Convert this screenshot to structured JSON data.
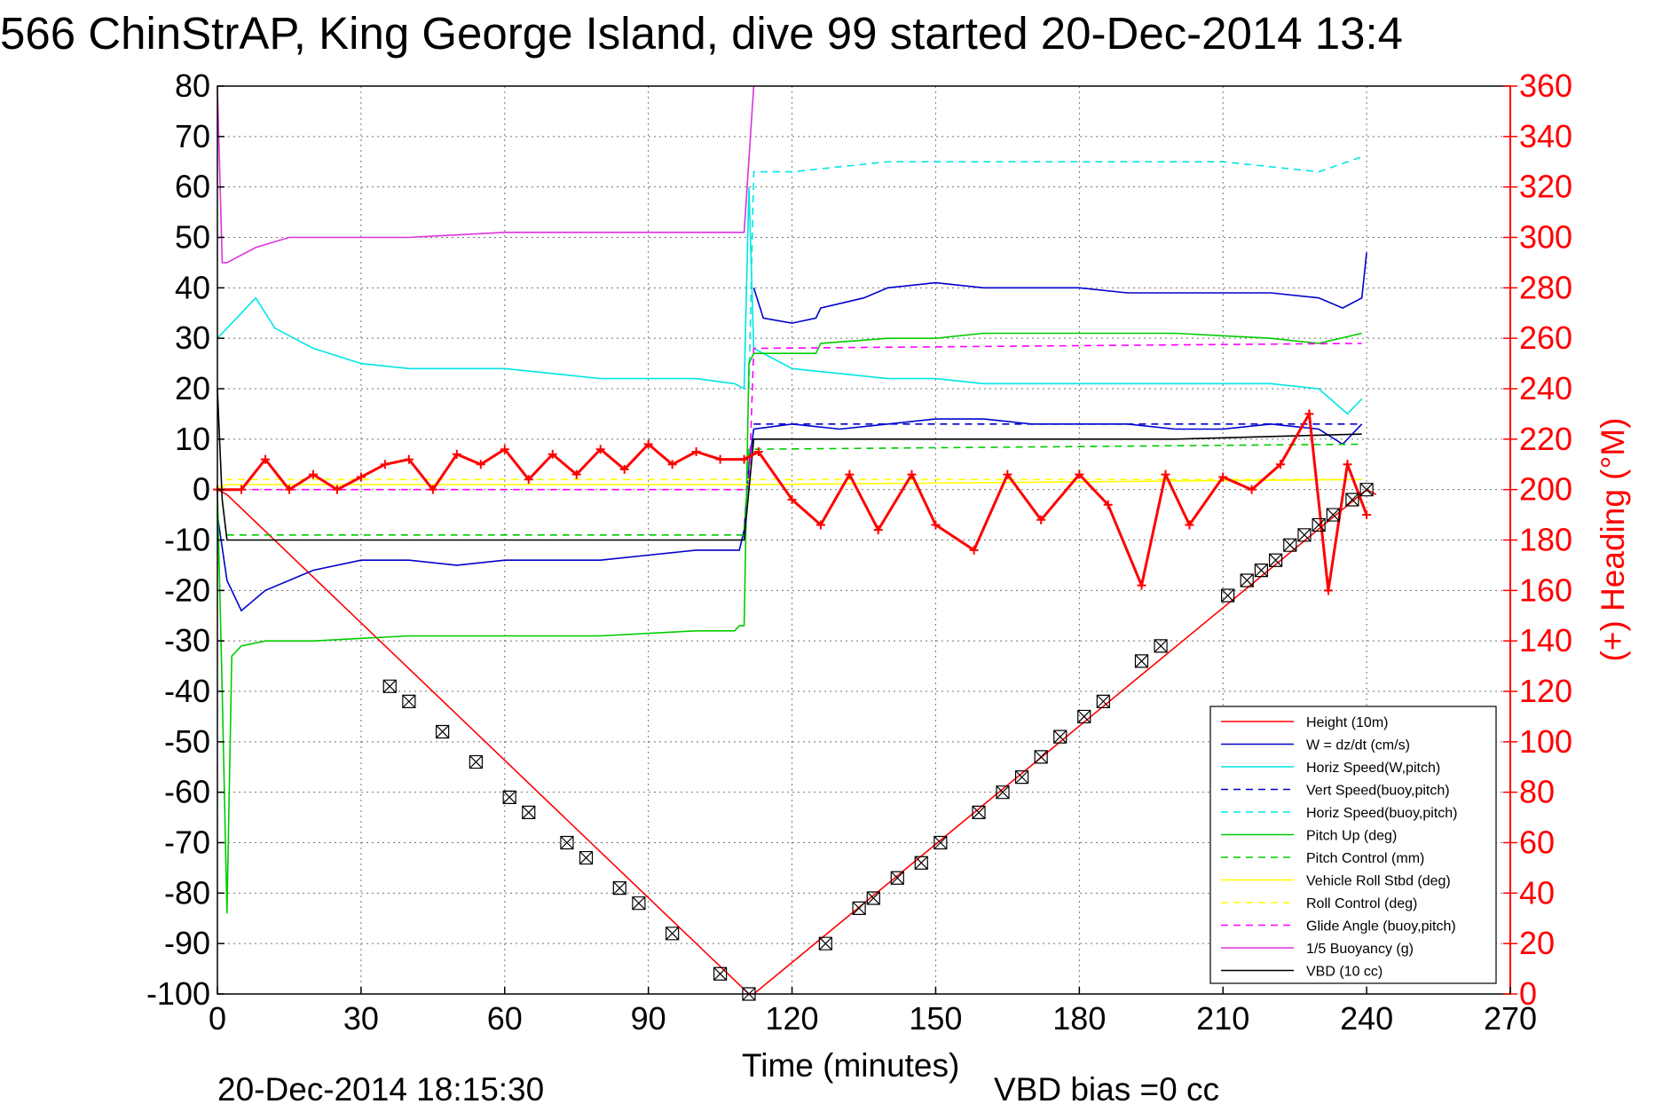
{
  "chart_data": {
    "type": "line",
    "title": "566 ChinStrAP, King George Island, dive 99 started 20-Dec-2014 13:4",
    "xlabel": "Time (minutes)",
    "ylabel_right": "(+) Heading (°M)",
    "xlim": [
      0,
      270
    ],
    "ylim": [
      -100,
      80
    ],
    "ylim_right": [
      0,
      360
    ],
    "x_ticks": [
      "0",
      "30",
      "60",
      "90",
      "120",
      "150",
      "180",
      "210",
      "240",
      "270"
    ],
    "y_ticks": [
      "80",
      "70",
      "60",
      "50",
      "40",
      "30",
      "20",
      "10",
      "0",
      "-10",
      "-20",
      "-30",
      "-40",
      "-50",
      "-60",
      "-70",
      "-80",
      "-90",
      "-100"
    ],
    "y_ticks_right": [
      "360",
      "340",
      "320",
      "300",
      "280",
      "260",
      "240",
      "220",
      "200",
      "180",
      "160",
      "140",
      "120",
      "100",
      "80",
      "60",
      "40",
      "20",
      "0"
    ],
    "grid": true,
    "legend_position": "bottom-right",
    "footer_left": "20-Dec-2014 18:15:30",
    "footer_right": "VBD bias =0 cc",
    "colors": {
      "height": "#ff0000",
      "w": "#0000cc",
      "horiz_speed": "#00e5e5",
      "pitch": "#00cc00",
      "roll": "#ffff00",
      "glide_angle": "#ff00ff",
      "buoyancy": "#dd33dd",
      "vbd": "#000000",
      "heading": "#ff0000"
    },
    "series": [
      {
        "key": "height",
        "name": "Height (10m)",
        "color": "#ff0000",
        "dash": "",
        "x": [
          0,
          2,
          111,
          112,
          240,
          242
        ],
        "y": [
          0,
          -1,
          -100,
          -100,
          0,
          -1
        ]
      },
      {
        "key": "w",
        "name": "W = dz/dt (cm/s)",
        "color": "#0000cc",
        "dash": "",
        "x": [
          0,
          2,
          5,
          10,
          20,
          30,
          40,
          50,
          60,
          70,
          80,
          90,
          100,
          109,
          110,
          111,
          112,
          120,
          130,
          140,
          150,
          160,
          170,
          180,
          190,
          200,
          210,
          220,
          230,
          235,
          239
        ],
        "y": [
          -5,
          -18,
          -24,
          -20,
          -16,
          -14,
          -14,
          -15,
          -14,
          -14,
          -14,
          -13,
          -12,
          -12,
          -8,
          5,
          12,
          13,
          12,
          13,
          14,
          14,
          13,
          13,
          13,
          12,
          12,
          13,
          12,
          9,
          13
        ]
      },
      {
        "key": "w_top",
        "name": "",
        "color": "#0000cc",
        "dash": "",
        "x": [
          112,
          114,
          120,
          125,
          126,
          135,
          140,
          150,
          160,
          170,
          180,
          190,
          200,
          210,
          220,
          230,
          235,
          239,
          240
        ],
        "y": [
          40,
          34,
          33,
          34,
          36,
          38,
          40,
          41,
          40,
          40,
          40,
          39,
          39,
          39,
          39,
          38,
          36,
          38,
          47
        ]
      },
      {
        "key": "horiz_speed",
        "name": "Horiz Speed(W,pitch)",
        "color": "#00e5e5",
        "dash": "",
        "x": [
          0,
          2,
          5,
          8,
          12,
          20,
          30,
          40,
          50,
          60,
          70,
          80,
          90,
          100,
          108,
          110,
          111,
          112,
          120,
          130,
          140,
          150,
          160,
          170,
          180,
          190,
          200,
          210,
          220,
          230,
          236,
          239
        ],
        "y": [
          30,
          32,
          35,
          38,
          32,
          28,
          25,
          24,
          24,
          24,
          23,
          22,
          22,
          22,
          21,
          20,
          60,
          28,
          24,
          23,
          22,
          22,
          21,
          21,
          21,
          21,
          21,
          21,
          21,
          20,
          15,
          18
        ]
      },
      {
        "key": "vert_speed_buoy",
        "name": "Vert Speed(buoy,pitch)",
        "color": "#0000cc",
        "dash": "8 6",
        "x": [
          112,
          239
        ],
        "y": [
          13,
          13
        ]
      },
      {
        "key": "horiz_speed_buoy",
        "name": "Horiz Speed(buoy,pitch)",
        "color": "#00e5e5",
        "dash": "8 6",
        "x": [
          111,
          112,
          120,
          130,
          140,
          150,
          160,
          170,
          180,
          190,
          200,
          210,
          220,
          230,
          239
        ],
        "y": [
          20,
          63,
          63,
          64,
          65,
          65,
          65,
          65,
          65,
          65,
          65,
          65,
          64,
          63,
          66
        ]
      },
      {
        "key": "pitch_up",
        "name": "Pitch Up (deg)",
        "color": "#00cc00",
        "dash": "",
        "x": [
          0,
          1,
          2,
          3,
          5,
          10,
          20,
          40,
          60,
          80,
          100,
          108,
          109,
          110,
          111,
          112,
          120,
          125,
          126,
          140,
          150,
          160,
          180,
          200,
          220,
          230,
          239
        ],
        "y": [
          0,
          -40,
          -84,
          -33,
          -31,
          -30,
          -30,
          -29,
          -29,
          -29,
          -28,
          -28,
          -27,
          -27,
          25,
          27,
          27,
          27,
          29,
          30,
          30,
          31,
          31,
          31,
          30,
          29,
          31
        ]
      },
      {
        "key": "pitch_control",
        "name": "Pitch Control (mm)",
        "color": "#00cc00",
        "dash": "8 6",
        "x": [
          2,
          110,
          111,
          112,
          239
        ],
        "y": [
          -9,
          -9,
          8,
          8,
          9
        ]
      },
      {
        "key": "vehicle_roll",
        "name": "Vehicle Roll Stbd (deg)",
        "color": "#ffff00",
        "dash": "",
        "x": [
          0,
          2,
          110,
          111,
          112,
          239
        ],
        "y": [
          0,
          1,
          1,
          1,
          1,
          2
        ]
      },
      {
        "key": "roll_control",
        "name": "Roll Control (deg)",
        "color": "#ffff00",
        "dash": "8 6",
        "x": [
          0,
          2,
          110,
          111,
          112,
          239
        ],
        "y": [
          0,
          2,
          2,
          2,
          2,
          2
        ]
      },
      {
        "key": "glide_angle",
        "name": "Glide Angle (buoy,pitch)",
        "color": "#ff00ff",
        "dash": "8 6",
        "x": [
          2,
          110,
          111,
          112,
          239
        ],
        "y": [
          0,
          0,
          0,
          28,
          29
        ]
      },
      {
        "key": "buoyancy",
        "name": "1/5 Buoyancy (g)",
        "color": "#dd33dd",
        "dash": "",
        "x": [
          0,
          1,
          2,
          4,
          8,
          15,
          25,
          40,
          60,
          80,
          100,
          110,
          112
        ],
        "y": [
          80,
          45,
          45,
          46,
          48,
          50,
          50,
          50,
          51,
          51,
          51,
          51,
          80
        ]
      },
      {
        "key": "vbd",
        "name": "VBD (10 cc)",
        "color": "#000000",
        "dash": "",
        "x": [
          0,
          1,
          2,
          110,
          111,
          112,
          150,
          200,
          239
        ],
        "y": [
          20,
          -2,
          -10,
          -10,
          0,
          10,
          10,
          10,
          11
        ]
      },
      {
        "key": "heading",
        "name": "",
        "color": "#ff0000",
        "dash": "",
        "axis": "right",
        "x": [
          0,
          5,
          10,
          15,
          20,
          25,
          30,
          35,
          40,
          45,
          50,
          55,
          60,
          65,
          70,
          75,
          80,
          85,
          90,
          95,
          100,
          105,
          110,
          113,
          120,
          126,
          132,
          138,
          145,
          150,
          158,
          165,
          172,
          180,
          186,
          193,
          198,
          203,
          210,
          216,
          222,
          228,
          232,
          236,
          240
        ],
        "y": [
          200,
          200,
          212,
          200,
          206,
          200,
          205,
          210,
          212,
          200,
          214,
          210,
          216,
          204,
          214,
          206,
          216,
          208,
          218,
          210,
          215,
          212,
          212,
          215,
          196,
          186,
          206,
          184,
          206,
          186,
          176,
          206,
          188,
          206,
          194,
          162,
          206,
          186,
          205,
          200,
          210,
          230,
          160,
          210,
          190
        ]
      }
    ],
    "markers": {
      "x": [
        36,
        40,
        47,
        54,
        61,
        65,
        73,
        77,
        84,
        88,
        95,
        105,
        111,
        127,
        134,
        137,
        142,
        147,
        151,
        159,
        164,
        168,
        172,
        176,
        181,
        185,
        193,
        197,
        211,
        215,
        218,
        221,
        224,
        227,
        230,
        233,
        237,
        240
      ],
      "y": [
        -39,
        -42,
        -48,
        -54,
        -61,
        -64,
        -70,
        -73,
        -79,
        -82,
        -88,
        -96,
        -100,
        -90,
        -83,
        -81,
        -77,
        -74,
        -70,
        -64,
        -60,
        -57,
        -53,
        -49,
        -45,
        -42,
        -34,
        -31,
        -21,
        -18,
        -16,
        -14,
        -11,
        -9,
        -7,
        -5,
        -2,
        0
      ]
    }
  }
}
